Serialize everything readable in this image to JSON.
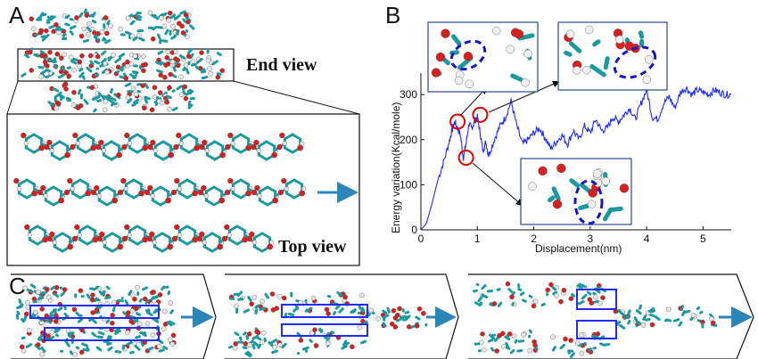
{
  "figure": {
    "panel_a": {
      "letter": "A",
      "end_view_label": "End view",
      "top_view_label": "Top view"
    },
    "panel_b": {
      "letter": "B"
    },
    "panel_c": {
      "letter": "C"
    }
  },
  "chart_data": {
    "type": "line",
    "xlabel": "Displacement(nm)",
    "ylabel": "Energy variation(Kcal/mole)",
    "xlim": [
      0,
      5.5
    ],
    "ylim": [
      0,
      320
    ],
    "xticks": [
      "0",
      "1",
      "2",
      "3",
      "4",
      "5"
    ],
    "yticks": [
      "0",
      "100",
      "200",
      "300"
    ],
    "series": [
      {
        "color": "#1f2bff",
        "x": [
          0,
          0.1,
          0.2,
          0.3,
          0.4,
          0.5,
          0.55,
          0.6,
          0.65,
          0.7,
          0.75,
          0.8,
          0.85,
          0.9,
          0.95,
          1.0,
          1.05,
          1.1,
          1.15,
          1.2,
          1.3,
          1.4,
          1.5,
          1.6,
          1.7,
          1.8,
          1.9,
          2.0,
          2.1,
          2.2,
          2.3,
          2.4,
          2.5,
          2.6,
          2.7,
          2.8,
          2.9,
          3.0,
          3.1,
          3.2,
          3.3,
          3.4,
          3.5,
          3.6,
          3.7,
          3.8,
          3.9,
          4.0,
          4.1,
          4.2,
          4.3,
          4.4,
          4.5,
          4.6,
          4.7,
          4.8,
          4.9,
          5.0,
          5.1,
          5.2,
          5.3,
          5.4,
          5.5
        ],
        "y": [
          0,
          15,
          60,
          110,
          150,
          195,
          220,
          240,
          225,
          210,
          160,
          190,
          235,
          225,
          240,
          250,
          215,
          175,
          195,
          165,
          200,
          230,
          250,
          285,
          230,
          190,
          200,
          215,
          225,
          205,
          180,
          195,
          210,
          190,
          220,
          200,
          230,
          215,
          245,
          220,
          225,
          250,
          240,
          255,
          270,
          245,
          280,
          310,
          250,
          245,
          280,
          295,
          270,
          305,
          315,
          300,
          310,
          305,
          300,
          310,
          305,
          300,
          300
        ]
      }
    ],
    "annotations": {
      "circled_points": [
        {
          "x": 0.65,
          "y": 240
        },
        {
          "x": 0.8,
          "y": 160
        },
        {
          "x": 1.05,
          "y": 255
        }
      ]
    }
  },
  "colors": {
    "curve": "#1f2bff",
    "circle": "#e00000",
    "dashed_oval": "#1414d0",
    "carbon": "#1a9aa0",
    "oxygen": "#d81f1f",
    "hydrogen": "#e8e8e8",
    "arrow": "#2a86b8",
    "selection_box": "#1f2bff"
  }
}
